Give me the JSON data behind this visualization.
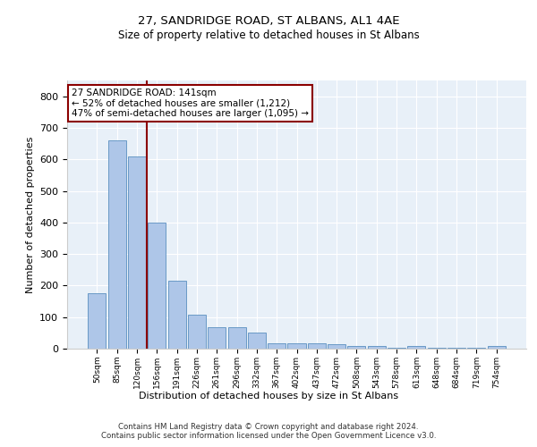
{
  "title1": "27, SANDRIDGE ROAD, ST ALBANS, AL1 4AE",
  "title2": "Size of property relative to detached houses in St Albans",
  "xlabel": "Distribution of detached houses by size in St Albans",
  "ylabel": "Number of detached properties",
  "bin_labels": [
    "50sqm",
    "85sqm",
    "120sqm",
    "156sqm",
    "191sqm",
    "226sqm",
    "261sqm",
    "296sqm",
    "332sqm",
    "367sqm",
    "402sqm",
    "437sqm",
    "472sqm",
    "508sqm",
    "543sqm",
    "578sqm",
    "613sqm",
    "648sqm",
    "684sqm",
    "719sqm",
    "754sqm"
  ],
  "bar_heights": [
    175,
    660,
    610,
    400,
    215,
    108,
    67,
    67,
    50,
    18,
    18,
    18,
    14,
    8,
    8,
    2,
    8,
    2,
    2,
    2,
    8
  ],
  "bar_color": "#aec6e8",
  "bar_edge_color": "#5a8fc0",
  "vline_pos": 2.5,
  "vline_color": "#8b0000",
  "annotation_text": "27 SANDRIDGE ROAD: 141sqm\n← 52% of detached houses are smaller (1,212)\n47% of semi-detached houses are larger (1,095) →",
  "annotation_box_color": "#ffffff",
  "annotation_box_edge": "#8b0000",
  "ylim": [
    0,
    850
  ],
  "yticks": [
    0,
    100,
    200,
    300,
    400,
    500,
    600,
    700,
    800
  ],
  "footer1": "Contains HM Land Registry data © Crown copyright and database right 2024.",
  "footer2": "Contains public sector information licensed under the Open Government Licence v3.0.",
  "bg_color": "#e8f0f8",
  "fig_bg_color": "#ffffff"
}
